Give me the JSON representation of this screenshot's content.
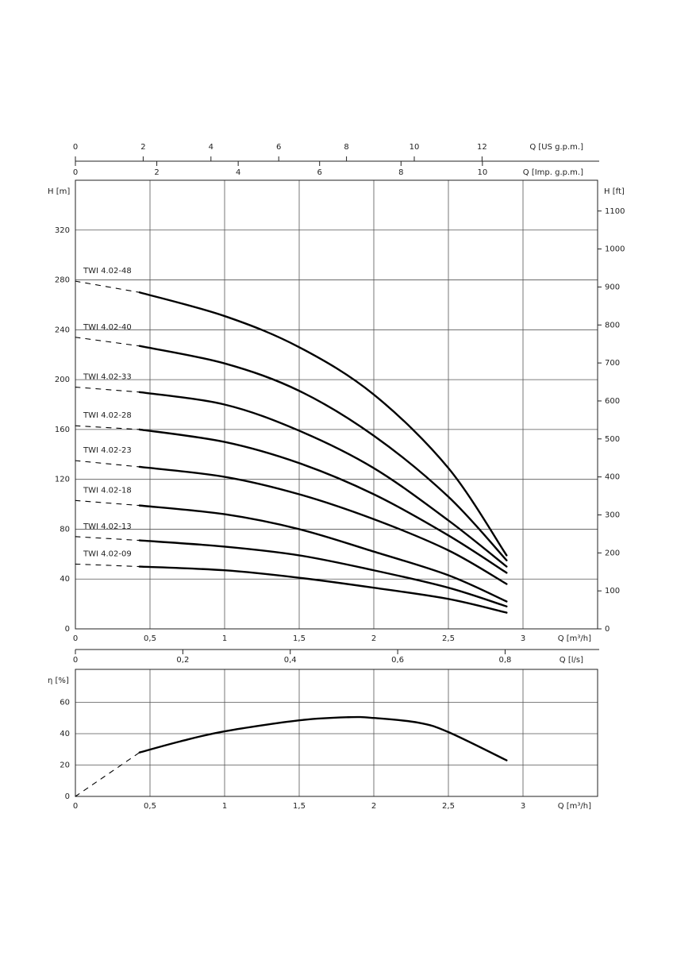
{
  "chart_data": [
    {
      "type": "line",
      "xlabel": "Q [m³/h]",
      "ylabel": "H [m]",
      "y2label": "H [ft]",
      "xlim": [
        0,
        3.5
      ],
      "ylim": [
        0,
        360
      ],
      "y2lim": [
        0,
        1181
      ],
      "xticks": [
        0,
        {
          "value": 0.5,
          "label": "0,5"
        },
        1,
        {
          "value": 1.5,
          "label": "1,5"
        },
        2,
        {
          "value": 2.5,
          "label": "2,5"
        },
        3
      ],
      "yticks": [
        0,
        40,
        80,
        120,
        160,
        200,
        240,
        280,
        320
      ],
      "y2ticks": [
        0,
        100,
        200,
        300,
        400,
        500,
        600,
        700,
        800,
        900,
        1000,
        1100
      ],
      "grid": true,
      "dashed_below_x": 0.43,
      "extra_x_axes": [
        {
          "label": "Q [US g.p.m.]",
          "position": "top-outer",
          "xlim": [
            0,
            15.41
          ],
          "xticks": [
            0,
            2,
            4,
            6,
            8,
            10,
            12
          ]
        },
        {
          "label": "Q [Imp. g.p.m.]",
          "position": "top-inner",
          "xlim": [
            0,
            12.83
          ],
          "xticks": [
            0,
            2,
            4,
            6,
            8,
            10
          ]
        },
        {
          "label": "Q [l/s]",
          "position": "bottom",
          "xlim": [
            0,
            0.9722
          ],
          "xticks": [
            0,
            {
              "value": 0.2,
              "label": "0,2"
            },
            {
              "value": 0.4,
              "label": "0,4"
            },
            {
              "value": 0.6,
              "label": "0,6"
            },
            {
              "value": 0.8,
              "label": "0,8"
            }
          ]
        }
      ],
      "x": [
        0,
        0.43,
        1,
        1.5,
        2,
        2.5,
        2.89
      ],
      "series": [
        {
          "name": "TWI 4.02-48",
          "color": "#000000",
          "values": [
            279,
            270,
            251,
            226,
            188,
            129,
            59
          ]
        },
        {
          "name": "TWI 4.02-40",
          "color": "#000000",
          "values": [
            234,
            227,
            213,
            191,
            155,
            106,
            55
          ]
        },
        {
          "name": "TWI 4.02-33",
          "color": "#000000",
          "values": [
            194,
            190,
            180,
            159,
            129,
            87,
            50
          ]
        },
        {
          "name": "TWI 4.02-28",
          "color": "#000000",
          "values": [
            163,
            160,
            150,
            133,
            108,
            75,
            45
          ]
        },
        {
          "name": "TWI 4.02-23",
          "color": "#000000",
          "values": [
            135,
            130,
            122,
            108,
            88,
            63,
            36
          ]
        },
        {
          "name": "TWI 4.02-18",
          "color": "#000000",
          "values": [
            103,
            99,
            92,
            80,
            62,
            43,
            22
          ]
        },
        {
          "name": "TWI 4.02-13",
          "color": "#000000",
          "values": [
            74,
            71,
            66,
            59,
            47,
            33,
            18
          ]
        },
        {
          "name": "TWI 4.02-09",
          "color": "#000000",
          "values": [
            52,
            50,
            47,
            41,
            33,
            24,
            13
          ]
        }
      ]
    },
    {
      "type": "line",
      "xlabel": "Q [m³/h]",
      "ylabel": "η [%]",
      "xlim": [
        0,
        3.5
      ],
      "ylim": [
        0,
        81
      ],
      "xticks": [
        0,
        {
          "value": 0.5,
          "label": "0,5"
        },
        1,
        {
          "value": 1.5,
          "label": "1,5"
        },
        2,
        {
          "value": 2.5,
          "label": "2,5"
        },
        3
      ],
      "yticks": [
        0,
        20,
        40,
        60
      ],
      "grid": true,
      "dashed_below_x": 0.43,
      "x": [
        0,
        0.43,
        0.7,
        1,
        1.5,
        1.83,
        2,
        2.3,
        2.5,
        2.89
      ],
      "series": [
        {
          "color": "#000000",
          "values": [
            0,
            28,
            35,
            41.5,
            48.5,
            50.5,
            50,
            47,
            41,
            23
          ]
        }
      ]
    }
  ]
}
